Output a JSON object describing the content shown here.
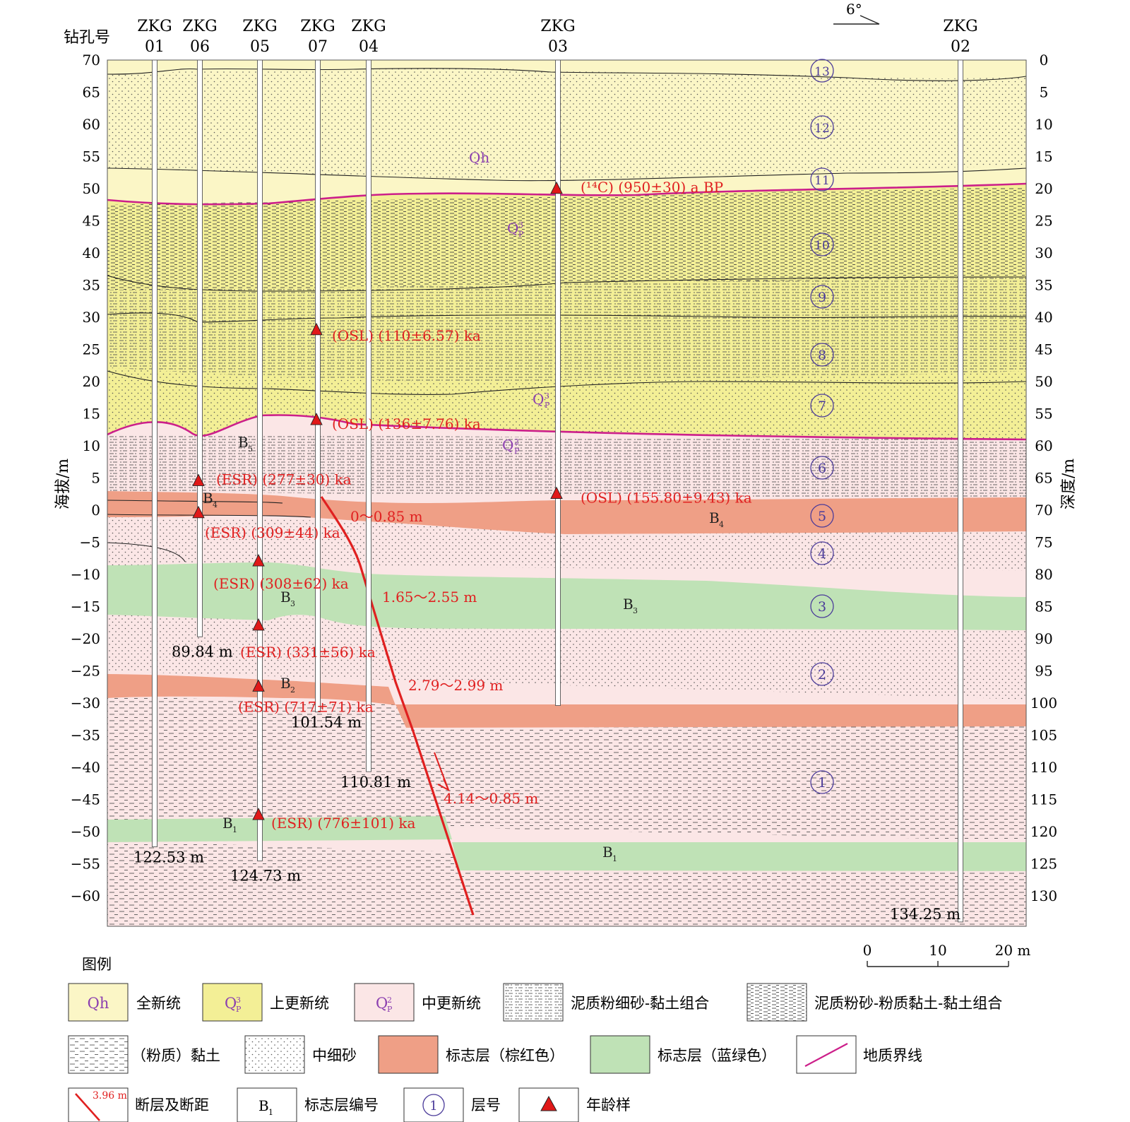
{
  "header": {
    "borehole_label": "钻孔号",
    "prefix": "ZKG",
    "orientation": "6°"
  },
  "axes": {
    "left_label": "海拔/m",
    "right_label": "深度/m",
    "elevation_ticks": [
      "70",
      "65",
      "60",
      "55",
      "50",
      "45",
      "40",
      "35",
      "30",
      "25",
      "20",
      "15",
      "10",
      "5",
      "0",
      "−5",
      "−10",
      "−15",
      "−20",
      "−25",
      "−30",
      "−35",
      "−40",
      "−45",
      "−50",
      "−55",
      "−60"
    ],
    "depth_ticks": [
      "0",
      "5",
      "10",
      "15",
      "20",
      "25",
      "30",
      "35",
      "40",
      "45",
      "50",
      "55",
      "60",
      "65",
      "70",
      "75",
      "80",
      "85",
      "90",
      "95",
      "100",
      "105",
      "110",
      "115",
      "120",
      "125",
      "130"
    ]
  },
  "boreholes": [
    {
      "id": "01",
      "bottom_label": "122.53 m",
      "top_elev": 70,
      "bottom_elev": -52.5
    },
    {
      "id": "06",
      "bottom_label": "89.84 m",
      "top_elev": 70,
      "bottom_elev": -19.8
    },
    {
      "id": "05",
      "bottom_label": "124.73 m",
      "top_elev": 70,
      "bottom_elev": -54.7
    },
    {
      "id": "07",
      "bottom_label": "101.54 m",
      "top_elev": 70,
      "bottom_elev": -31.5
    },
    {
      "id": "04",
      "bottom_label": "110.81 m",
      "top_elev": 70,
      "bottom_elev": -40.8
    },
    {
      "id": "03",
      "bottom_label": "",
      "top_elev": 70,
      "bottom_elev": -30.5
    },
    {
      "id": "02",
      "bottom_label": "134.25 m",
      "top_elev": 70,
      "bottom_elev": -64.2
    }
  ],
  "units": {
    "qh": {
      "label": "Qh",
      "sym": "Qh"
    },
    "qp3": {
      "label": "Q",
      "sup": "3",
      "sub": "P"
    },
    "qp2": {
      "label": "Q",
      "sup": "2",
      "sub": "P"
    }
  },
  "layer_numbers": [
    "13",
    "12",
    "11",
    "10",
    "9",
    "8",
    "7",
    "6",
    "5",
    "4",
    "3",
    "2",
    "1"
  ],
  "marker_labels": {
    "B5": "B",
    "B5_sub": "5",
    "B4a": "B",
    "B4a_sub": "4",
    "B4b": "B",
    "B4b_sub": "4",
    "B3a": "B",
    "B3a_sub": "3",
    "B3b": "B",
    "B3b_sub": "3",
    "B2": "B",
    "B2_sub": "2",
    "B1a": "B",
    "B1a_sub": "1",
    "B1b": "B",
    "B1b_sub": "1"
  },
  "age_samples": [
    {
      "label": "(¹⁴C) (950±30) a BP",
      "borehole": "03",
      "elev": 50
    },
    {
      "label": "(OSL) (110±6.57) ka",
      "borehole": "07",
      "elev": 28
    },
    {
      "label": "(OSL) (136±7.76) ka",
      "borehole": "07",
      "elev": 14
    },
    {
      "label": "(ESR) (277±30) ka",
      "borehole": "06",
      "elev": 4.5
    },
    {
      "label": "(OSL) (155.80±9.43) ka",
      "borehole": "03",
      "elev": 2.5
    },
    {
      "label": "(ESR) (309±44) ka",
      "borehole": "06",
      "elev": -0.5
    },
    {
      "label": "(ESR) (308±62) ka",
      "borehole": "05",
      "elev": -8
    },
    {
      "label": "(ESR) (331±56) ka",
      "borehole": "05",
      "elev": -18
    },
    {
      "label": "(ESR) (717±71) ka",
      "borehole": "05",
      "elev": -27.5
    },
    {
      "label": "(ESR) (776±101) ka",
      "borehole": "05",
      "elev": -47.5
    }
  ],
  "fault_offsets": [
    "0～0.85 m",
    "1.65～2.55 m",
    "2.79～2.99 m",
    "4.14～0.85 m"
  ],
  "scale_bar": {
    "ticks": [
      "0",
      "10",
      "20 m"
    ]
  },
  "legend": {
    "title": "图例",
    "items": [
      {
        "swatch": "Qh",
        "text": "全新统"
      },
      {
        "swatch": "Q",
        "text": "上更新统"
      },
      {
        "swatch": "Q",
        "text": "中更新统"
      },
      {
        "swatch": "",
        "text": "泥质粉细砂-黏土组合"
      },
      {
        "swatch": "",
        "text": "泥质粉砂-粉质黏土-黏土组合"
      },
      {
        "swatch": "",
        "text": "（粉质）黏土"
      },
      {
        "swatch": "",
        "text": "中细砂"
      },
      {
        "swatch": "",
        "text": "标志层（棕红色）"
      },
      {
        "swatch": "",
        "text": "标志层（蓝绿色）"
      },
      {
        "swatch": "",
        "text": "地质界线"
      },
      {
        "swatch": "3.96 m",
        "text": "断层及断距"
      },
      {
        "swatch": "B",
        "text": "标志层编号"
      },
      {
        "swatch": "1",
        "text": "层号"
      },
      {
        "swatch": "",
        "text": "年龄样"
      }
    ]
  },
  "colors": {
    "holocene": "#fbf6c6",
    "upper_pleistocene": "#f3ef96",
    "middle_pleistocene": "#fbe6e6",
    "red_marker": "#ef9f86",
    "green_marker": "#bfe2b6",
    "boundary": "#cc1f8a",
    "fault": "#e02020",
    "sample": "#e01818",
    "layer_circle": "#4b3b9a",
    "unit_label": "#8b3fb0"
  }
}
